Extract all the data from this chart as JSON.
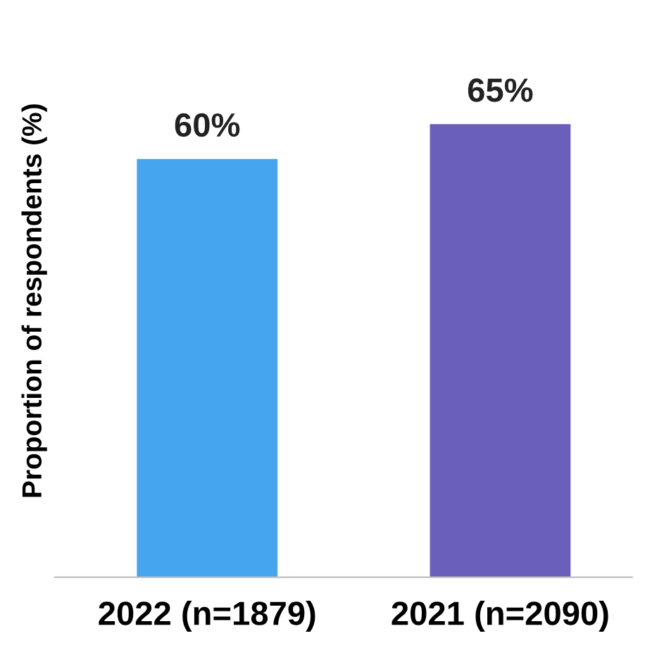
{
  "chart_data": {
    "type": "bar",
    "ylabel": "Proportion of respondents (%)",
    "categories": [
      "2022 (n=1879)",
      "2021 (n=2090)"
    ],
    "values": [
      60,
      65
    ],
    "colors": [
      "#45a5ee",
      "#6a5fba"
    ],
    "value_labels": [
      "60%",
      "65%"
    ],
    "grid": false,
    "legend": false
  }
}
